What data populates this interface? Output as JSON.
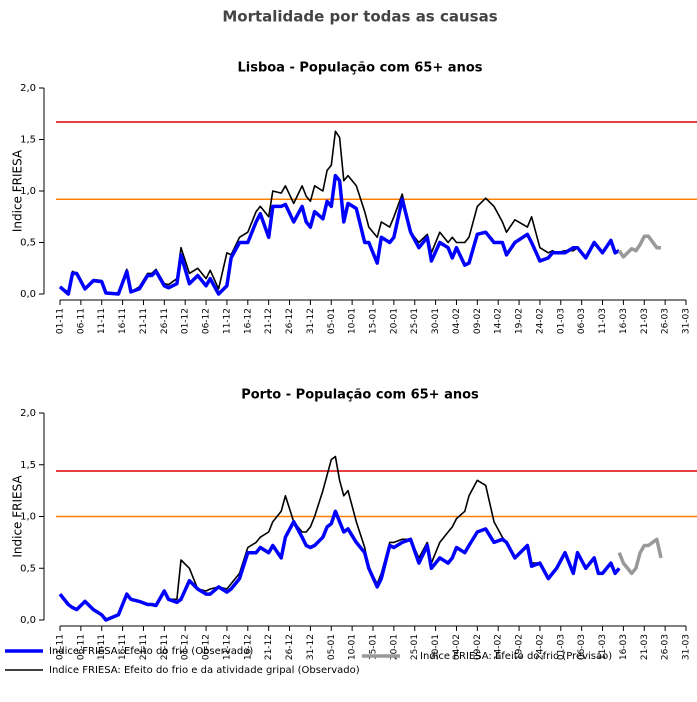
{
  "title": "Mortalidade por todas as causas",
  "chart_data": [
    {
      "type": "line",
      "title": "Lisboa - População com 65+ anos",
      "ylabel": "Indice FRIESA",
      "xlim": [
        0,
        150
      ],
      "ylim": [
        0,
        2
      ],
      "yticks": [
        {
          "value": 0,
          "label": "0,0"
        },
        {
          "value": 0.5,
          "label": "0,5"
        },
        {
          "value": 1,
          "label": "1,0"
        },
        {
          "value": 1.5,
          "label": "1,5"
        },
        {
          "value": 2,
          "label": "2,0"
        }
      ],
      "xticks": [
        {
          "value": 0,
          "label": "01-11"
        },
        {
          "value": 5,
          "label": "06-11"
        },
        {
          "value": 10,
          "label": "11-11"
        },
        {
          "value": 15,
          "label": "16-11"
        },
        {
          "value": 20,
          "label": "21-11"
        },
        {
          "value": 25,
          "label": "26-11"
        },
        {
          "value": 30,
          "label": "01-12"
        },
        {
          "value": 35,
          "label": "06-12"
        },
        {
          "value": 40,
          "label": "11-12"
        },
        {
          "value": 45,
          "label": "16-12"
        },
        {
          "value": 50,
          "label": "21-12"
        },
        {
          "value": 55,
          "label": "26-12"
        },
        {
          "value": 60,
          "label": "31-12"
        },
        {
          "value": 65,
          "label": "05-01"
        },
        {
          "value": 70,
          "label": "10-01"
        },
        {
          "value": 75,
          "label": "15-01"
        },
        {
          "value": 80,
          "label": "20-01"
        },
        {
          "value": 85,
          "label": "25-01"
        },
        {
          "value": 90,
          "label": "30-01"
        },
        {
          "value": 95,
          "label": "04-02"
        },
        {
          "value": 100,
          "label": "09-02"
        },
        {
          "value": 105,
          "label": "14-02"
        },
        {
          "value": 110,
          "label": "19-02"
        },
        {
          "value": 115,
          "label": "24-02"
        },
        {
          "value": 120,
          "label": "01-03"
        },
        {
          "value": 125,
          "label": "06-03"
        },
        {
          "value": 130,
          "label": "11-03"
        },
        {
          "value": 135,
          "label": "16-03"
        },
        {
          "value": 140,
          "label": "21-03"
        },
        {
          "value": 145,
          "label": "26-03"
        },
        {
          "value": 150,
          "label": "31-03"
        }
      ],
      "thresholds": [
        {
          "value": 1.67,
          "color": "#e00000"
        },
        {
          "value": 0.92,
          "color": "#ff8000"
        }
      ],
      "x": [
        0,
        2,
        3,
        4,
        6,
        8,
        10,
        11,
        14,
        16,
        17,
        19,
        21,
        22,
        23,
        25,
        26,
        28,
        29,
        31,
        33,
        35,
        36,
        38,
        40,
        41,
        43,
        45,
        47,
        48,
        50,
        51,
        53,
        54,
        56,
        58,
        59,
        60,
        61,
        63,
        64,
        65,
        66,
        67,
        68,
        69,
        71,
        73,
        74,
        76,
        77,
        79,
        80,
        82,
        84,
        86,
        88,
        89,
        91,
        93,
        94,
        95,
        97,
        98,
        100,
        102,
        104,
        106,
        107,
        109,
        112,
        113,
        115,
        117,
        118,
        119,
        121,
        123,
        124,
        126,
        128,
        129,
        130,
        132,
        133,
        134
      ],
      "series": [
        {
          "name": "Indice FRIESA: Efeito do frio (Observado)",
          "color": "#0000ff",
          "width": 3.5,
          "values": [
            0.07,
            0.0,
            0.2,
            0.2,
            0.05,
            0.13,
            0.12,
            0.01,
            0.0,
            0.22,
            0.02,
            0.05,
            0.18,
            0.18,
            0.22,
            0.08,
            0.06,
            0.1,
            0.38,
            0.1,
            0.18,
            0.08,
            0.15,
            0.0,
            0.08,
            0.35,
            0.5,
            0.5,
            0.7,
            0.78,
            0.55,
            0.85,
            0.85,
            0.87,
            0.7,
            0.85,
            0.7,
            0.65,
            0.8,
            0.73,
            0.9,
            0.85,
            1.15,
            1.1,
            0.7,
            0.88,
            0.83,
            0.5,
            0.5,
            0.3,
            0.55,
            0.5,
            0.55,
            0.92,
            0.6,
            0.45,
            0.55,
            0.32,
            0.5,
            0.45,
            0.35,
            0.45,
            0.28,
            0.3,
            0.58,
            0.6,
            0.5,
            0.5,
            0.38,
            0.5,
            0.58,
            0.5,
            0.32,
            0.35,
            0.4,
            0.4,
            0.4,
            0.45,
            0.45,
            0.35,
            0.5,
            0.45,
            0.4,
            0.52,
            0.4,
            0.42
          ]
        },
        {
          "name": "Indice FRIESA: Efeito do frio e da atividade gripal (Observado)",
          "color": "#000000",
          "width": 1.6,
          "values": [
            0.07,
            0.02,
            0.22,
            0.2,
            0.05,
            0.14,
            0.13,
            0.01,
            0.0,
            0.24,
            0.02,
            0.07,
            0.2,
            0.2,
            0.24,
            0.1,
            0.09,
            0.15,
            0.45,
            0.2,
            0.25,
            0.15,
            0.23,
            0.05,
            0.4,
            0.38,
            0.55,
            0.6,
            0.8,
            0.85,
            0.75,
            1.0,
            0.98,
            1.05,
            0.88,
            1.05,
            0.95,
            0.9,
            1.05,
            1.0,
            1.2,
            1.25,
            1.58,
            1.52,
            1.1,
            1.15,
            1.05,
            0.8,
            0.65,
            0.55,
            0.7,
            0.65,
            0.75,
            0.97,
            0.6,
            0.5,
            0.58,
            0.4,
            0.6,
            0.5,
            0.55,
            0.5,
            0.5,
            0.55,
            0.85,
            0.93,
            0.85,
            0.7,
            0.6,
            0.72,
            0.65,
            0.75,
            0.45,
            0.4,
            0.42,
            0.4,
            0.42,
            0.42,
            0.45,
            0.35,
            0.5,
            0.45,
            0.4,
            0.52,
            0.4,
            0.42
          ]
        },
        {
          "name": "Indice FRIESA: Efeito do frio (Previsao)",
          "color": "#999999",
          "width": 3.5,
          "x": [
            134,
            135,
            137,
            138,
            139,
            140,
            141,
            143,
            144
          ],
          "values": [
            0.42,
            0.36,
            0.44,
            0.42,
            0.48,
            0.56,
            0.56,
            0.45,
            0.45
          ]
        }
      ]
    },
    {
      "type": "line",
      "title": "Porto - População com 65+ anos",
      "ylabel": "Indice FRIESA",
      "xlim": [
        0,
        150
      ],
      "ylim": [
        0,
        2
      ],
      "yticks": [
        {
          "value": 0,
          "label": "0,0"
        },
        {
          "value": 0.5,
          "label": "0,5"
        },
        {
          "value": 1,
          "label": "1,0"
        },
        {
          "value": 1.5,
          "label": "1,5"
        },
        {
          "value": 2,
          "label": "2,0"
        }
      ],
      "xticks": [
        {
          "value": 0,
          "label": "01-11"
        },
        {
          "value": 5,
          "label": "06-11"
        },
        {
          "value": 10,
          "label": "11-11"
        },
        {
          "value": 15,
          "label": "16-11"
        },
        {
          "value": 20,
          "label": "21-11"
        },
        {
          "value": 25,
          "label": "26-11"
        },
        {
          "value": 30,
          "label": "01-12"
        },
        {
          "value": 35,
          "label": "06-12"
        },
        {
          "value": 40,
          "label": "11-12"
        },
        {
          "value": 45,
          "label": "16-12"
        },
        {
          "value": 50,
          "label": "21-12"
        },
        {
          "value": 55,
          "label": "26-12"
        },
        {
          "value": 60,
          "label": "31-12"
        },
        {
          "value": 65,
          "label": "05-01"
        },
        {
          "value": 70,
          "label": "10-01"
        },
        {
          "value": 75,
          "label": "15-01"
        },
        {
          "value": 80,
          "label": "20-01"
        },
        {
          "value": 85,
          "label": "25-01"
        },
        {
          "value": 90,
          "label": "30-01"
        },
        {
          "value": 95,
          "label": "04-02"
        },
        {
          "value": 100,
          "label": "09-02"
        },
        {
          "value": 105,
          "label": "14-02"
        },
        {
          "value": 110,
          "label": "19-02"
        },
        {
          "value": 115,
          "label": "24-02"
        },
        {
          "value": 120,
          "label": "01-03"
        },
        {
          "value": 125,
          "label": "06-03"
        },
        {
          "value": 130,
          "label": "11-03"
        },
        {
          "value": 135,
          "label": "16-03"
        },
        {
          "value": 140,
          "label": "21-03"
        },
        {
          "value": 145,
          "label": "26-03"
        },
        {
          "value": 150,
          "label": "31-03"
        }
      ],
      "thresholds": [
        {
          "value": 1.44,
          "color": "#e00000"
        },
        {
          "value": 1.0,
          "color": "#ff8000"
        }
      ],
      "x": [
        0,
        2,
        3,
        4,
        6,
        8,
        10,
        11,
        14,
        16,
        17,
        19,
        21,
        22,
        23,
        25,
        26,
        28,
        29,
        31,
        33,
        35,
        36,
        38,
        40,
        41,
        43,
        45,
        47,
        48,
        50,
        51,
        53,
        54,
        56,
        58,
        59,
        60,
        61,
        63,
        64,
        65,
        66,
        67,
        68,
        69,
        71,
        73,
        74,
        76,
        77,
        79,
        80,
        82,
        84,
        86,
        88,
        89,
        91,
        93,
        94,
        95,
        97,
        98,
        100,
        102,
        104,
        106,
        107,
        109,
        112,
        113,
        115,
        117,
        118,
        119,
        121,
        123,
        124,
        126,
        128,
        129,
        130,
        132,
        133,
        134
      ],
      "series": [
        {
          "color": "#0000ff",
          "width": 3.5,
          "values": [
            0.25,
            0.15,
            0.12,
            0.1,
            0.18,
            0.1,
            0.05,
            0.0,
            0.05,
            0.25,
            0.2,
            0.18,
            0.15,
            0.15,
            0.14,
            0.28,
            0.2,
            0.17,
            0.2,
            0.38,
            0.3,
            0.25,
            0.25,
            0.32,
            0.27,
            0.3,
            0.4,
            0.65,
            0.65,
            0.7,
            0.65,
            0.72,
            0.6,
            0.8,
            0.95,
            0.8,
            0.72,
            0.7,
            0.72,
            0.8,
            0.9,
            0.93,
            1.05,
            0.95,
            0.85,
            0.88,
            0.75,
            0.65,
            0.5,
            0.32,
            0.4,
            0.72,
            0.7,
            0.75,
            0.78,
            0.55,
            0.72,
            0.5,
            0.6,
            0.55,
            0.6,
            0.7,
            0.65,
            0.72,
            0.85,
            0.88,
            0.75,
            0.78,
            0.75,
            0.6,
            0.72,
            0.52,
            0.55,
            0.4,
            0.45,
            0.5,
            0.65,
            0.45,
            0.65,
            0.5,
            0.6,
            0.45,
            0.45,
            0.55,
            0.45,
            0.5
          ]
        },
        {
          "color": "#000000",
          "width": 1.6,
          "values": [
            0.25,
            0.15,
            0.12,
            0.1,
            0.18,
            0.1,
            0.05,
            0.0,
            0.05,
            0.25,
            0.2,
            0.18,
            0.15,
            0.15,
            0.14,
            0.28,
            0.2,
            0.2,
            0.58,
            0.5,
            0.3,
            0.28,
            0.3,
            0.32,
            0.3,
            0.35,
            0.45,
            0.7,
            0.75,
            0.8,
            0.85,
            0.95,
            1.05,
            1.2,
            0.95,
            0.85,
            0.85,
            0.9,
            1.0,
            1.25,
            1.4,
            1.55,
            1.58,
            1.35,
            1.2,
            1.25,
            0.95,
            0.7,
            0.5,
            0.35,
            0.45,
            0.75,
            0.75,
            0.78,
            0.78,
            0.6,
            0.75,
            0.55,
            0.75,
            0.85,
            0.9,
            0.98,
            1.05,
            1.2,
            1.35,
            1.3,
            0.95,
            0.8,
            0.75,
            0.6,
            0.72,
            0.55,
            0.55,
            0.4,
            0.45,
            0.5,
            0.65,
            0.45,
            0.65,
            0.5,
            0.6,
            0.45,
            0.45,
            0.55,
            0.45,
            0.5
          ]
        },
        {
          "color": "#999999",
          "width": 3.5,
          "x": [
            134,
            135,
            137,
            138,
            139,
            140,
            141,
            143,
            144
          ],
          "values": [
            0.65,
            0.55,
            0.45,
            0.5,
            0.65,
            0.72,
            0.72,
            0.78,
            0.6
          ]
        }
      ]
    }
  ]
}
